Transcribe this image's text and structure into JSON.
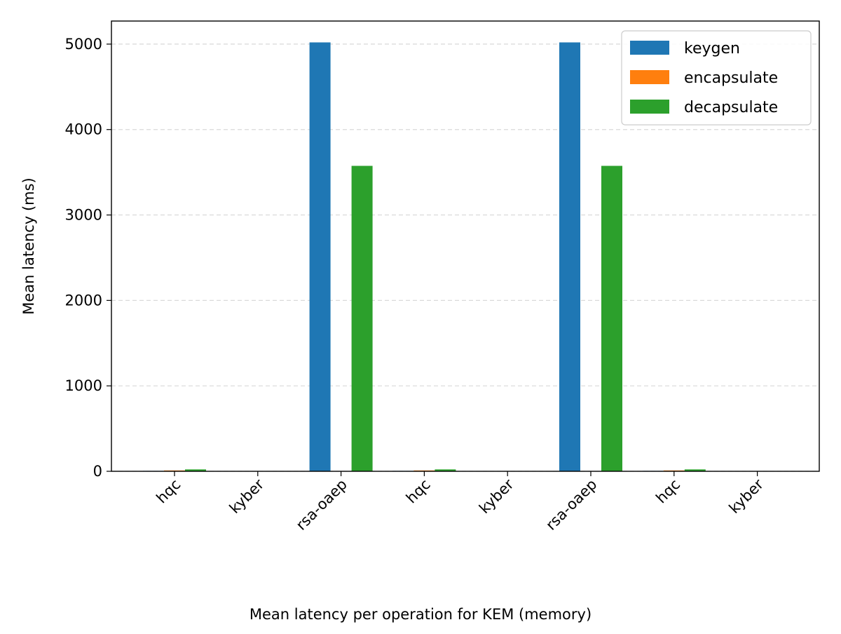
{
  "chart_data": {
    "type": "bar",
    "categories": [
      "hqc",
      "kyber",
      "rsa-oaep",
      "hqc",
      "kyber",
      "rsa-oaep",
      "hqc",
      "kyber"
    ],
    "series": [
      {
        "name": "keygen",
        "color": "#1f77b4",
        "values": [
          5,
          1,
          5020,
          5,
          1,
          5020,
          5,
          1
        ]
      },
      {
        "name": "encapsulate",
        "color": "#ff7f0e",
        "values": [
          10,
          1,
          2,
          10,
          1,
          2,
          10,
          1
        ]
      },
      {
        "name": "decapsulate",
        "color": "#2ca02c",
        "values": [
          22,
          1,
          3575,
          22,
          1,
          3575,
          22,
          1
        ]
      }
    ],
    "xlabel": "",
    "ylabel": "Mean latency (ms)",
    "ylim": [
      0,
      5270
    ],
    "yticks": [
      0,
      1000,
      2000,
      3000,
      4000,
      5000
    ],
    "grid": "y dashed",
    "legend_position": "top-right",
    "caption": "Mean latency per operation for KEM (memory)"
  }
}
